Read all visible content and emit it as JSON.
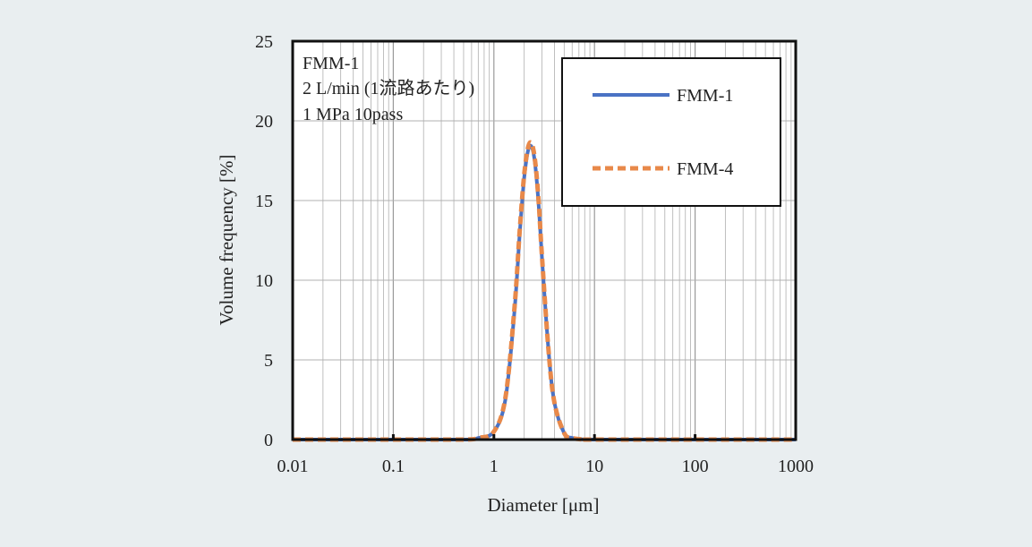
{
  "chart_data": {
    "type": "line",
    "x_scale": "log",
    "xlim": [
      0.01,
      1000
    ],
    "ylim": [
      0,
      25
    ],
    "xticks": [
      "0.01",
      "0.1",
      "1",
      "10",
      "100",
      "1000"
    ],
    "yticks": [
      "0",
      "5",
      "10",
      "15",
      "20",
      "25"
    ],
    "xlabel": "Diameter [μm]",
    "ylabel": "Volume frequency [%]",
    "grid": true,
    "legend_position": "top-right",
    "annotation": [
      "FMM-1",
      "2 L/min (1流路あたり)",
      "1 MPa  10pass"
    ],
    "series": [
      {
        "name": "FMM-1",
        "color": "#4a72c4",
        "style": "solid",
        "x": [
          0.01,
          0.1,
          0.5,
          0.7,
          1.0,
          1.3,
          1.6,
          1.8,
          2.0,
          2.2,
          2.4,
          2.6,
          2.8,
          3.0,
          3.5,
          4.0,
          5.0,
          6.0,
          8.0,
          10,
          100,
          1000
        ],
        "y": [
          0,
          0,
          0,
          0.1,
          0.5,
          2.5,
          8.0,
          12.8,
          16.4,
          18.2,
          18.3,
          17.0,
          14.5,
          11.5,
          5.5,
          2.3,
          0.4,
          0.1,
          0,
          0,
          0,
          0
        ]
      },
      {
        "name": "FMM-4",
        "color": "#e8894a",
        "style": "dashed",
        "x": [
          0.01,
          0.1,
          0.5,
          0.7,
          1.0,
          1.3,
          1.6,
          1.8,
          2.0,
          2.2,
          2.4,
          2.6,
          2.8,
          3.0,
          3.5,
          4.0,
          5.0,
          6.0,
          8.0,
          10,
          100,
          1000
        ],
        "y": [
          0,
          0,
          0,
          0.1,
          0.5,
          2.6,
          8.2,
          13.0,
          16.6,
          18.4,
          18.5,
          17.2,
          14.7,
          11.6,
          5.5,
          2.3,
          0.4,
          0.1,
          0,
          0,
          0,
          0
        ]
      }
    ]
  }
}
